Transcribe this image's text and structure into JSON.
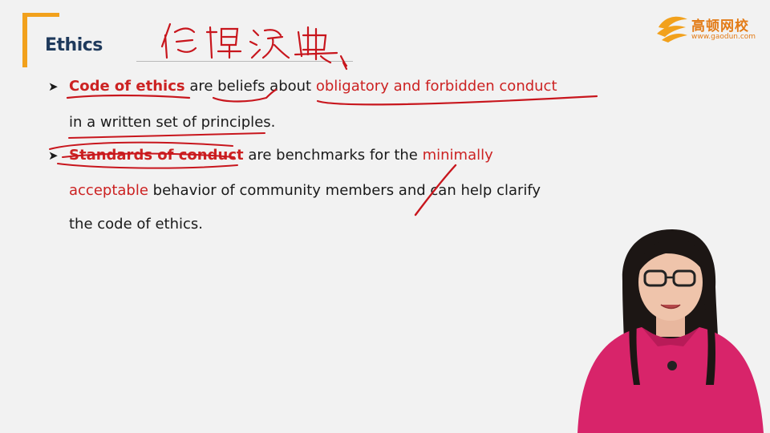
{
  "slide": {
    "title": "Ethics",
    "handwriting": "伦理汉典",
    "logo": {
      "name": "高顿网校",
      "url": "www.gaodun.com"
    },
    "bullets": [
      {
        "term": "Code of ethics",
        "t1": " are ",
        "t2": "beliefs",
        "t3": " about ",
        "t4": "obligatory and forbidden conduct",
        "line2": "in a written set of principles."
      },
      {
        "term": "Standards of conduct",
        "t1": " are benchmarks for the ",
        "t2": "minimally",
        "line2a": "acceptable",
        "line2b": " behavior of community members and can help clarify",
        "line3": "the code of ethics."
      }
    ]
  },
  "colors": {
    "accent_orange": "#f2a11c",
    "title_navy": "#1f3a5c",
    "emphasis_red": "#cc2222",
    "pen_red": "#c8161d",
    "background": "#f2f2f2"
  }
}
